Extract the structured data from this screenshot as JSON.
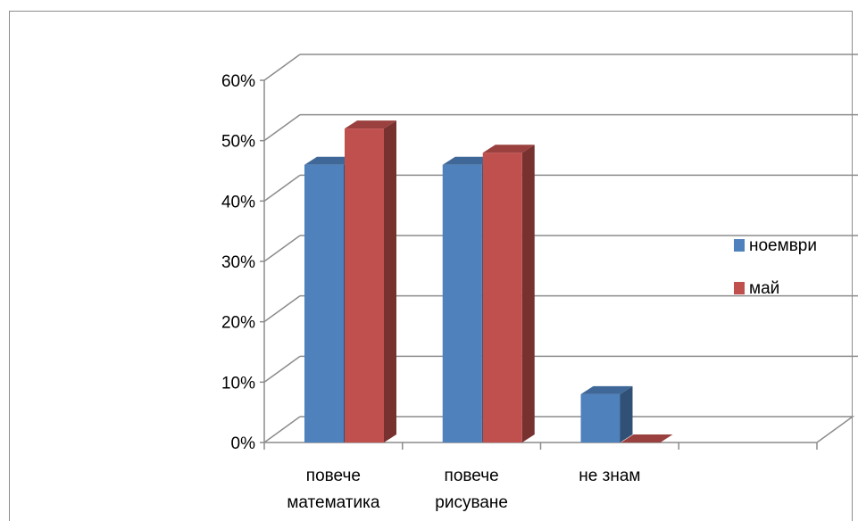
{
  "chart_data": {
    "type": "bar",
    "categories": [
      "повече математика",
      "повече рисуване",
      "не знам"
    ],
    "category_label_lines": [
      [
        "повече",
        "математика"
      ],
      [
        "повече",
        "рисуване"
      ],
      [
        "не знам"
      ]
    ],
    "series": [
      {
        "name": "ноември",
        "values": [
          0.46,
          0.46,
          0.08
        ]
      },
      {
        "name": "май",
        "values": [
          0.52,
          0.48,
          0.0
        ]
      }
    ],
    "y_ticks": [
      0,
      0.1,
      0.2,
      0.3,
      0.4,
      0.5,
      0.6
    ],
    "y_tick_labels": [
      "0%",
      "10%",
      "20%",
      "30%",
      "40%",
      "50%",
      "60%"
    ],
    "ylim": [
      0,
      0.6
    ],
    "grid": true,
    "legend_position": "right",
    "colors": {
      "ноември": "#4f81bd",
      "май": "#c0504d"
    }
  }
}
